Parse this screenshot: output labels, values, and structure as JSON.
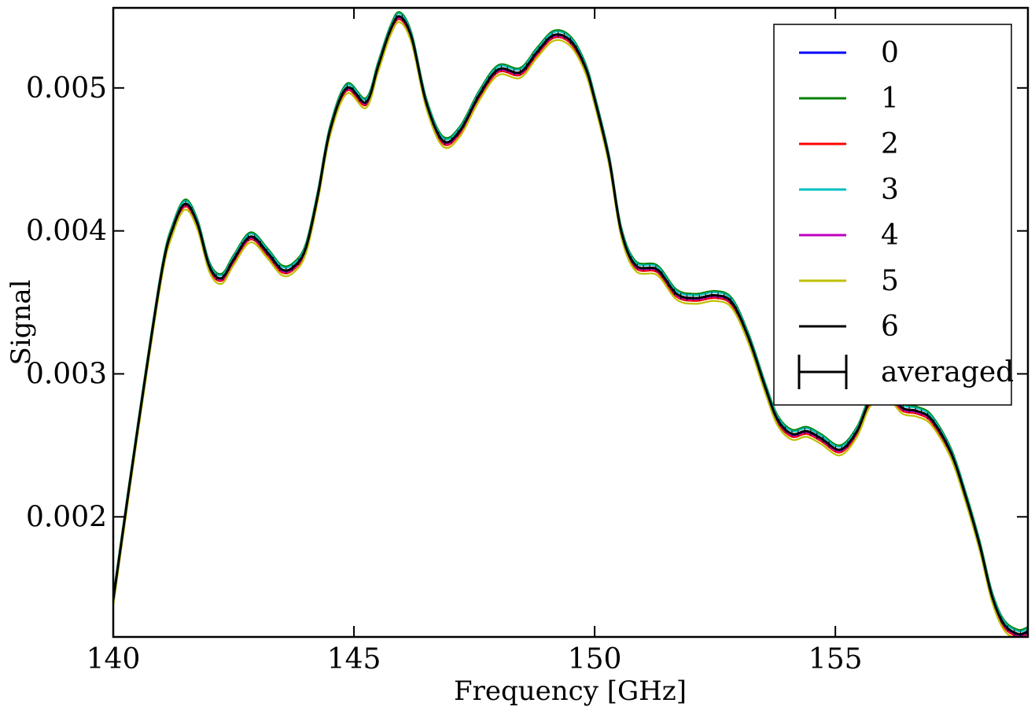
{
  "chart_data": {
    "type": "line",
    "title": "",
    "xlabel": "Frequency [GHz]",
    "ylabel": "Signal",
    "xlim": [
      140,
      159
    ],
    "ylim": [
      0.00116,
      0.00556
    ],
    "xticks": [
      140,
      145,
      150,
      155
    ],
    "yticks": [
      0.002,
      0.003,
      0.004,
      0.005
    ],
    "xtick_labels": [
      "140",
      "145",
      "150",
      "155"
    ],
    "ytick_labels": [
      "0.002",
      "0.003",
      "0.004",
      "0.005"
    ],
    "grid": false,
    "legend_position": "top-right",
    "x": [
      140.0,
      140.5,
      141.0,
      141.25,
      141.5,
      141.75,
      142.0,
      142.25,
      142.5,
      142.85,
      143.2,
      143.5,
      143.75,
      144.0,
      144.25,
      144.5,
      144.85,
      145.25,
      145.5,
      145.75,
      145.95,
      146.2,
      146.5,
      146.85,
      147.2,
      147.6,
      148.0,
      148.45,
      148.8,
      149.15,
      149.5,
      149.8,
      150.0,
      150.3,
      150.55,
      150.85,
      151.3,
      151.7,
      152.1,
      152.5,
      152.85,
      153.2,
      153.55,
      153.8,
      154.1,
      154.4,
      154.7,
      155.1,
      155.45,
      155.7,
      155.95,
      156.15,
      156.4,
      156.7,
      157.0,
      157.4,
      157.7,
      158.0,
      158.25,
      158.5,
      158.8,
      159.0
    ],
    "series": [
      {
        "name": "0",
        "color": "#0000ff",
        "offset": 0.0,
        "values": [
          0.00142,
          0.0026,
          0.0037,
          0.00403,
          0.00419,
          0.00405,
          0.00375,
          0.00367,
          0.0038,
          0.00396,
          0.00385,
          0.00373,
          0.00375,
          0.00388,
          0.00425,
          0.0047,
          0.005,
          0.0049,
          0.00515,
          0.0054,
          0.0055,
          0.00535,
          0.0049,
          0.00463,
          0.0047,
          0.00495,
          0.00513,
          0.00511,
          0.00525,
          0.00537,
          0.00533,
          0.00515,
          0.00492,
          0.0045,
          0.004,
          0.00376,
          0.00373,
          0.00356,
          0.00353,
          0.00355,
          0.0035,
          0.00325,
          0.0029,
          0.00268,
          0.00258,
          0.0026,
          0.00255,
          0.00247,
          0.0026,
          0.0028,
          0.00287,
          0.00285,
          0.00276,
          0.00274,
          0.00268,
          0.00245,
          0.00215,
          0.0018,
          0.00145,
          0.00125,
          0.00118,
          0.0012
        ]
      },
      {
        "name": "1",
        "color": "#008000",
        "offset": 3e-05,
        "values": [
          0.00142,
          0.0026,
          0.0037,
          0.00403,
          0.00419,
          0.00405,
          0.00375,
          0.00367,
          0.0038,
          0.00396,
          0.00385,
          0.00373,
          0.00375,
          0.00388,
          0.00425,
          0.0047,
          0.005,
          0.0049,
          0.00515,
          0.0054,
          0.0055,
          0.00535,
          0.0049,
          0.00463,
          0.0047,
          0.00495,
          0.00513,
          0.00511,
          0.00525,
          0.00537,
          0.00533,
          0.00515,
          0.00492,
          0.0045,
          0.004,
          0.00376,
          0.00373,
          0.00356,
          0.00353,
          0.00355,
          0.0035,
          0.00325,
          0.0029,
          0.00268,
          0.00258,
          0.0026,
          0.00255,
          0.00247,
          0.0026,
          0.0028,
          0.00287,
          0.00285,
          0.00276,
          0.00274,
          0.00268,
          0.00245,
          0.00215,
          0.0018,
          0.00145,
          0.00125,
          0.00118,
          0.0012
        ]
      },
      {
        "name": "2",
        "color": "#ff0000",
        "offset": -2e-05,
        "values": [
          0.00142,
          0.0026,
          0.0037,
          0.00403,
          0.00419,
          0.00405,
          0.00375,
          0.00367,
          0.0038,
          0.00396,
          0.00385,
          0.00373,
          0.00375,
          0.00388,
          0.00425,
          0.0047,
          0.005,
          0.0049,
          0.00515,
          0.0054,
          0.0055,
          0.00535,
          0.0049,
          0.00463,
          0.0047,
          0.00495,
          0.00513,
          0.00511,
          0.00525,
          0.00537,
          0.00533,
          0.00515,
          0.00492,
          0.0045,
          0.004,
          0.00376,
          0.00373,
          0.00356,
          0.00353,
          0.00355,
          0.0035,
          0.00325,
          0.0029,
          0.00268,
          0.00258,
          0.0026,
          0.00255,
          0.00247,
          0.0026,
          0.0028,
          0.00287,
          0.00285,
          0.00276,
          0.00274,
          0.00268,
          0.00245,
          0.00215,
          0.0018,
          0.00145,
          0.00125,
          0.00118,
          0.0012
        ]
      },
      {
        "name": "3",
        "color": "#00bfbf",
        "offset": 2e-05,
        "values": [
          0.00142,
          0.0026,
          0.0037,
          0.00403,
          0.00419,
          0.00405,
          0.00375,
          0.00367,
          0.0038,
          0.00396,
          0.00385,
          0.00373,
          0.00375,
          0.00388,
          0.00425,
          0.0047,
          0.005,
          0.0049,
          0.00515,
          0.0054,
          0.0055,
          0.00535,
          0.0049,
          0.00463,
          0.0047,
          0.00495,
          0.00513,
          0.00511,
          0.00525,
          0.00537,
          0.00533,
          0.00515,
          0.00492,
          0.0045,
          0.004,
          0.00376,
          0.00373,
          0.00356,
          0.00353,
          0.00355,
          0.0035,
          0.00325,
          0.0029,
          0.00268,
          0.00258,
          0.0026,
          0.00255,
          0.00247,
          0.0026,
          0.0028,
          0.00287,
          0.00285,
          0.00276,
          0.00274,
          0.00268,
          0.00245,
          0.00215,
          0.0018,
          0.00145,
          0.00125,
          0.00118,
          0.0012
        ]
      },
      {
        "name": "4",
        "color": "#bf00bf",
        "offset": -1e-05,
        "values": [
          0.00142,
          0.0026,
          0.0037,
          0.00403,
          0.00419,
          0.00405,
          0.00375,
          0.00367,
          0.0038,
          0.00396,
          0.00385,
          0.00373,
          0.00375,
          0.00388,
          0.00425,
          0.0047,
          0.005,
          0.0049,
          0.00515,
          0.0054,
          0.0055,
          0.00535,
          0.0049,
          0.00463,
          0.0047,
          0.00495,
          0.00513,
          0.00511,
          0.00525,
          0.00537,
          0.00533,
          0.00515,
          0.00492,
          0.0045,
          0.004,
          0.00376,
          0.00373,
          0.00356,
          0.00353,
          0.00355,
          0.0035,
          0.00325,
          0.0029,
          0.00268,
          0.00258,
          0.0026,
          0.00255,
          0.00247,
          0.0026,
          0.0028,
          0.00287,
          0.00285,
          0.00276,
          0.00274,
          0.00268,
          0.00245,
          0.00215,
          0.0018,
          0.00145,
          0.00125,
          0.00118,
          0.0012
        ]
      },
      {
        "name": "5",
        "color": "#bfbf00",
        "offset": -4e-05,
        "values": [
          0.00142,
          0.0026,
          0.0037,
          0.00403,
          0.00419,
          0.00405,
          0.00375,
          0.00367,
          0.0038,
          0.00396,
          0.00385,
          0.00373,
          0.00375,
          0.00388,
          0.00425,
          0.0047,
          0.005,
          0.0049,
          0.00515,
          0.0054,
          0.0055,
          0.00535,
          0.0049,
          0.00463,
          0.0047,
          0.00495,
          0.00513,
          0.00511,
          0.00525,
          0.00537,
          0.00533,
          0.00515,
          0.00492,
          0.0045,
          0.004,
          0.00376,
          0.00373,
          0.00356,
          0.00353,
          0.00355,
          0.0035,
          0.00325,
          0.0029,
          0.00268,
          0.00258,
          0.0026,
          0.00255,
          0.00247,
          0.0026,
          0.0028,
          0.00287,
          0.00285,
          0.00276,
          0.00274,
          0.00268,
          0.00245,
          0.00215,
          0.0018,
          0.00145,
          0.00125,
          0.00118,
          0.0012
        ]
      },
      {
        "name": "6",
        "color": "#000000",
        "offset": 0.0,
        "values": [
          0.00142,
          0.0026,
          0.0037,
          0.00403,
          0.00419,
          0.00405,
          0.00375,
          0.00367,
          0.0038,
          0.00396,
          0.00385,
          0.00373,
          0.00375,
          0.00388,
          0.00425,
          0.0047,
          0.005,
          0.0049,
          0.00515,
          0.0054,
          0.0055,
          0.00535,
          0.0049,
          0.00463,
          0.0047,
          0.00495,
          0.00513,
          0.00511,
          0.00525,
          0.00537,
          0.00533,
          0.00515,
          0.00492,
          0.0045,
          0.004,
          0.00376,
          0.00373,
          0.00356,
          0.00353,
          0.00355,
          0.0035,
          0.00325,
          0.0029,
          0.00268,
          0.00258,
          0.0026,
          0.00255,
          0.00247,
          0.0026,
          0.0028,
          0.00287,
          0.00285,
          0.00276,
          0.00274,
          0.00268,
          0.00245,
          0.00215,
          0.0018,
          0.00145,
          0.00125,
          0.00118,
          0.0012
        ]
      }
    ],
    "averaged": {
      "name": "averaged",
      "color": "#000000",
      "marker": "errorbar"
    },
    "legend_entries": [
      "0",
      "1",
      "2",
      "3",
      "4",
      "5",
      "6",
      "averaged"
    ]
  }
}
